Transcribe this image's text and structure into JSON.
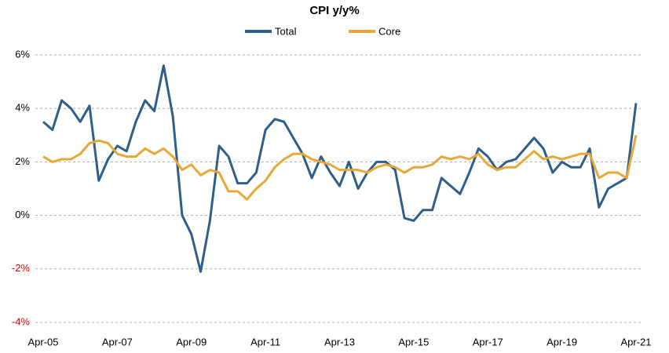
{
  "chart_data": {
    "type": "line",
    "title": "CPI y/y%",
    "categories": [
      "Apr-05",
      null,
      null,
      null,
      null,
      null,
      null,
      null,
      "Apr-07",
      null,
      null,
      null,
      null,
      null,
      null,
      null,
      "Apr-09",
      null,
      null,
      null,
      null,
      null,
      null,
      null,
      "Apr-11",
      null,
      null,
      null,
      null,
      null,
      null,
      null,
      "Apr-13",
      null,
      null,
      null,
      null,
      null,
      null,
      null,
      "Apr-15",
      null,
      null,
      null,
      null,
      null,
      null,
      null,
      "Apr-17",
      null,
      null,
      null,
      null,
      null,
      null,
      null,
      "Apr-19",
      null,
      null,
      null,
      null,
      null,
      null,
      null,
      "Apr-21"
    ],
    "series": [
      {
        "name": "Total",
        "color": "#2e5f8a",
        "values": [
          3.5,
          3.2,
          4.3,
          4.0,
          3.5,
          4.1,
          1.3,
          2.1,
          2.6,
          2.4,
          3.5,
          4.3,
          3.9,
          5.6,
          3.7,
          0.0,
          -0.7,
          -2.1,
          -0.2,
          2.6,
          2.2,
          1.2,
          1.2,
          1.6,
          3.2,
          3.6,
          3.5,
          2.9,
          2.3,
          1.4,
          2.2,
          1.6,
          1.1,
          2.0,
          1.0,
          1.6,
          2.0,
          2.0,
          1.7,
          -0.1,
          -0.2,
          0.2,
          0.2,
          1.4,
          1.1,
          0.8,
          1.6,
          2.5,
          2.2,
          1.7,
          2.0,
          2.1,
          2.5,
          2.9,
          2.5,
          1.6,
          2.0,
          1.8,
          1.8,
          2.5,
          0.3,
          1.0,
          1.2,
          1.4,
          4.2
        ]
      },
      {
        "name": "Core",
        "color": "#e8a838",
        "values": [
          2.2,
          2.0,
          2.1,
          2.1,
          2.3,
          2.7,
          2.8,
          2.7,
          2.3,
          2.2,
          2.2,
          2.5,
          2.3,
          2.5,
          2.2,
          1.7,
          1.9,
          1.5,
          1.7,
          1.6,
          0.9,
          0.9,
          0.6,
          1.0,
          1.3,
          1.8,
          2.1,
          2.3,
          2.3,
          2.1,
          2.0,
          1.9,
          1.7,
          1.7,
          1.7,
          1.6,
          1.8,
          1.9,
          1.8,
          1.6,
          1.8,
          1.8,
          1.9,
          2.2,
          2.1,
          2.2,
          2.1,
          2.3,
          1.9,
          1.7,
          1.8,
          1.8,
          2.1,
          2.4,
          2.1,
          2.2,
          2.1,
          2.2,
          2.3,
          2.3,
          1.4,
          1.6,
          1.6,
          1.4,
          3.0
        ]
      }
    ],
    "ylim": [
      -4,
      6
    ],
    "yticks": [
      {
        "value": -4,
        "label": "-4%"
      },
      {
        "value": -2,
        "label": "-2%"
      },
      {
        "value": 0,
        "label": "0%"
      },
      {
        "value": 2,
        "label": "2%"
      },
      {
        "value": 4,
        "label": "4%"
      },
      {
        "value": 6,
        "label": "6%"
      }
    ],
    "grid": true,
    "negative_tick_color": "#e00000",
    "legend": "top"
  }
}
